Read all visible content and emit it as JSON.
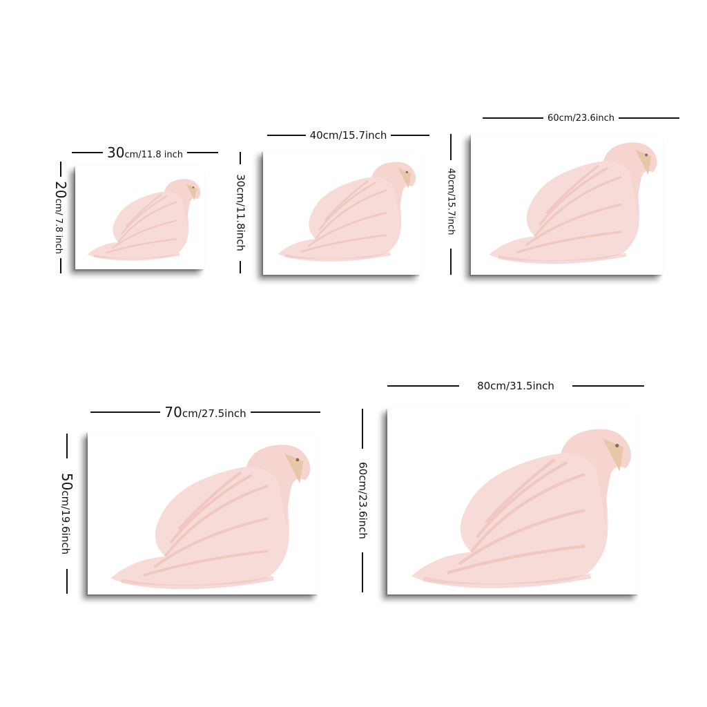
{
  "sizes": [
    {
      "id": "s1",
      "width_label": {
        "num": "30",
        "rest": "cm/11.8 inch"
      },
      "height_label": {
        "num": "20",
        "rest": "cm/ 7.8 inch"
      }
    },
    {
      "id": "s2",
      "width_label": {
        "num": "",
        "rest": "40cm/15.7inch"
      },
      "height_label": {
        "num": "",
        "rest": "30cm/11.8inch"
      }
    },
    {
      "id": "s3",
      "width_label": {
        "num": "",
        "rest": "60cm/23.6inch"
      },
      "height_label": {
        "num": "",
        "rest": "40cm/15.7inch"
      }
    },
    {
      "id": "s4",
      "width_label": {
        "num": "70",
        "rest": "cm/27.5inch"
      },
      "height_label": {
        "num": "50",
        "rest": "cm/19.6inch"
      }
    },
    {
      "id": "s5",
      "width_label": {
        "num": "",
        "rest": "80cm/31.5inch"
      },
      "height_label": {
        "num": "",
        "rest": "60cm/23.6inch"
      }
    }
  ],
  "colors": {
    "swan_body": "#f7d9d6",
    "swan_shade": "#efc2bd",
    "swan_beak": "#e8c6a8",
    "line": "#111111"
  }
}
